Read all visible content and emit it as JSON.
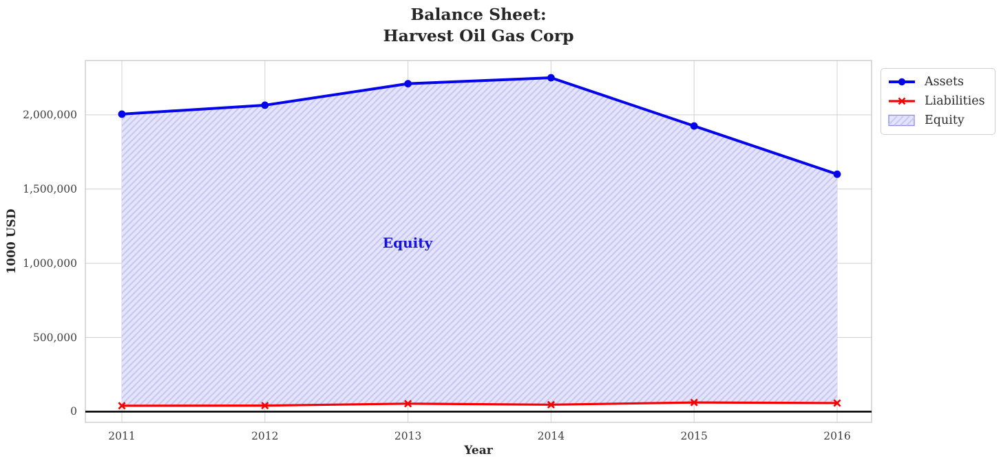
{
  "chart_data": {
    "type": "line",
    "title": "Balance Sheet:\nHarvest Oil Gas Corp",
    "title_lines": [
      "Balance Sheet:",
      "Harvest Oil Gas Corp"
    ],
    "xlabel": "Year",
    "ylabel": "1000 USD",
    "categories": [
      "2011",
      "2012",
      "2013",
      "2014",
      "2015",
      "2016"
    ],
    "series": [
      {
        "name": "Assets",
        "type": "line",
        "marker": "circle",
        "color": "#0404e8",
        "values": [
          2005000,
          2065000,
          2210000,
          2250000,
          1925000,
          1600000
        ]
      },
      {
        "name": "Liabilities",
        "type": "line",
        "marker": "x",
        "color": "#f40000",
        "values": [
          40000,
          41000,
          54000,
          47000,
          62000,
          58000
        ]
      },
      {
        "name": "Equity",
        "type": "area-between",
        "between": [
          "Liabilities",
          "Assets"
        ],
        "fill_color": "#e4e4fb",
        "hatch_color": "#c8c8f0",
        "edge_color": "#8f8fe8",
        "values": [
          1965000,
          2024000,
          2156000,
          2203000,
          1863000,
          1542000
        ]
      }
    ],
    "area_label": {
      "text": "Equity",
      "color": "#1414dd",
      "x": "2013",
      "y": 1130000
    },
    "y_ticks": {
      "values": [
        0,
        500000,
        1000000,
        1500000,
        2000000
      ],
      "labels": [
        "0",
        "500,000",
        "1,000,000",
        "1,500,000",
        "2,000,000"
      ]
    },
    "ylim": [
      -72000,
      2366000
    ],
    "grid": true,
    "zero_line_color": "#000000",
    "legend": {
      "position": "upper right outside",
      "entries": [
        "Assets",
        "Liabilities",
        "Equity"
      ]
    }
  }
}
